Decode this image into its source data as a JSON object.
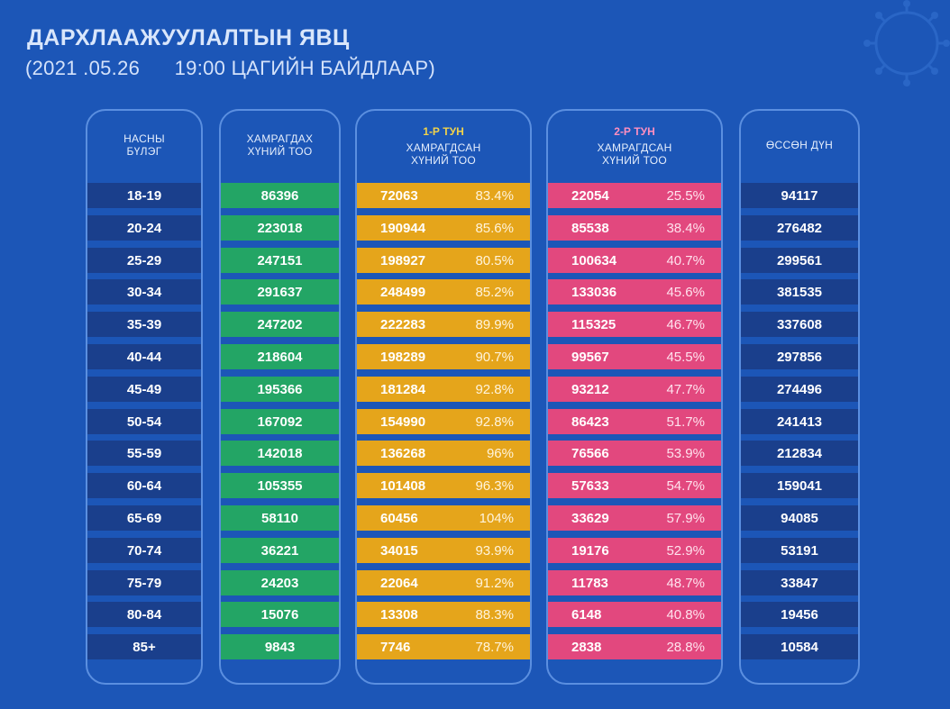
{
  "title": "ДАРХЛААЖУУЛАЛТЫН ЯВЦ",
  "subtitle": "(2021 .05.26      19:00 ЦАГИЙН БАЙДЛААР)",
  "colors": {
    "background": "#1c56b7",
    "age_rows": "#1a3f8c",
    "target_rows": "#23a565",
    "dose1_rows": "#e5a51b",
    "dose2_rows": "#e2487e",
    "dose1_label": "#f2d34a",
    "dose2_label": "#ff8fc0"
  },
  "chart_data": {
    "type": "table",
    "title": "ДАРХЛААЖУУЛАЛТЫН ЯВЦ",
    "columns": [
      {
        "key": "age",
        "header": [
          "НАСНЫ",
          "БҮЛЭГ"
        ]
      },
      {
        "key": "target",
        "header": [
          "ХАМРАГДАХ",
          "ХҮНИЙ ТОО"
        ]
      },
      {
        "key": "dose1",
        "dose_label": "1-Р ТУН",
        "header": [
          "ХАМРАГДСАН",
          "ХҮНИЙ ТОО"
        ]
      },
      {
        "key": "dose2",
        "dose_label": "2-Р ТУН",
        "header": [
          "ХАМРАГДСАН",
          "ХҮНИЙ ТОО"
        ]
      },
      {
        "key": "total",
        "header": [
          "ӨССӨН ДҮН"
        ]
      }
    ],
    "rows": [
      {
        "age": "18-19",
        "target": "86396",
        "dose1": "72063",
        "dose1_pct": "83.4%",
        "dose2": "22054",
        "dose2_pct": "25.5%",
        "total": "94117"
      },
      {
        "age": "20-24",
        "target": "223018",
        "dose1": "190944",
        "dose1_pct": "85.6%",
        "dose2": "85538",
        "dose2_pct": "38.4%",
        "total": "276482"
      },
      {
        "age": "25-29",
        "target": "247151",
        "dose1": "198927",
        "dose1_pct": "80.5%",
        "dose2": "100634",
        "dose2_pct": "40.7%",
        "total": "299561"
      },
      {
        "age": "30-34",
        "target": "291637",
        "dose1": "248499",
        "dose1_pct": "85.2%",
        "dose2": "133036",
        "dose2_pct": "45.6%",
        "total": "381535"
      },
      {
        "age": "35-39",
        "target": "247202",
        "dose1": "222283",
        "dose1_pct": "89.9%",
        "dose2": "115325",
        "dose2_pct": "46.7%",
        "total": "337608"
      },
      {
        "age": "40-44",
        "target": "218604",
        "dose1": "198289",
        "dose1_pct": "90.7%",
        "dose2": "99567",
        "dose2_pct": "45.5%",
        "total": "297856"
      },
      {
        "age": "45-49",
        "target": "195366",
        "dose1": "181284",
        "dose1_pct": "92.8%",
        "dose2": "93212",
        "dose2_pct": "47.7%",
        "total": "274496"
      },
      {
        "age": "50-54",
        "target": "167092",
        "dose1": "154990",
        "dose1_pct": "92.8%",
        "dose2": "86423",
        "dose2_pct": "51.7%",
        "total": "241413"
      },
      {
        "age": "55-59",
        "target": "142018",
        "dose1": "136268",
        "dose1_pct": "96%",
        "dose2": "76566",
        "dose2_pct": "53.9%",
        "total": "212834"
      },
      {
        "age": "60-64",
        "target": "105355",
        "dose1": "101408",
        "dose1_pct": "96.3%",
        "dose2": "57633",
        "dose2_pct": "54.7%",
        "total": "159041"
      },
      {
        "age": "65-69",
        "target": "58110",
        "dose1": "60456",
        "dose1_pct": "104%",
        "dose2": "33629",
        "dose2_pct": "57.9%",
        "total": "94085"
      },
      {
        "age": "70-74",
        "target": "36221",
        "dose1": "34015",
        "dose1_pct": "93.9%",
        "dose2": "19176",
        "dose2_pct": "52.9%",
        "total": "53191"
      },
      {
        "age": "75-79",
        "target": "24203",
        "dose1": "22064",
        "dose1_pct": "91.2%",
        "dose2": "11783",
        "dose2_pct": "48.7%",
        "total": "33847"
      },
      {
        "age": "80-84",
        "target": "15076",
        "dose1": "13308",
        "dose1_pct": "88.3%",
        "dose2": "6148",
        "dose2_pct": "40.8%",
        "total": "19456"
      },
      {
        "age": "85+",
        "target": "9843",
        "dose1": "7746",
        "dose1_pct": "78.7%",
        "dose2": "2838",
        "dose2_pct": "28.8%",
        "total": "10584"
      }
    ]
  }
}
